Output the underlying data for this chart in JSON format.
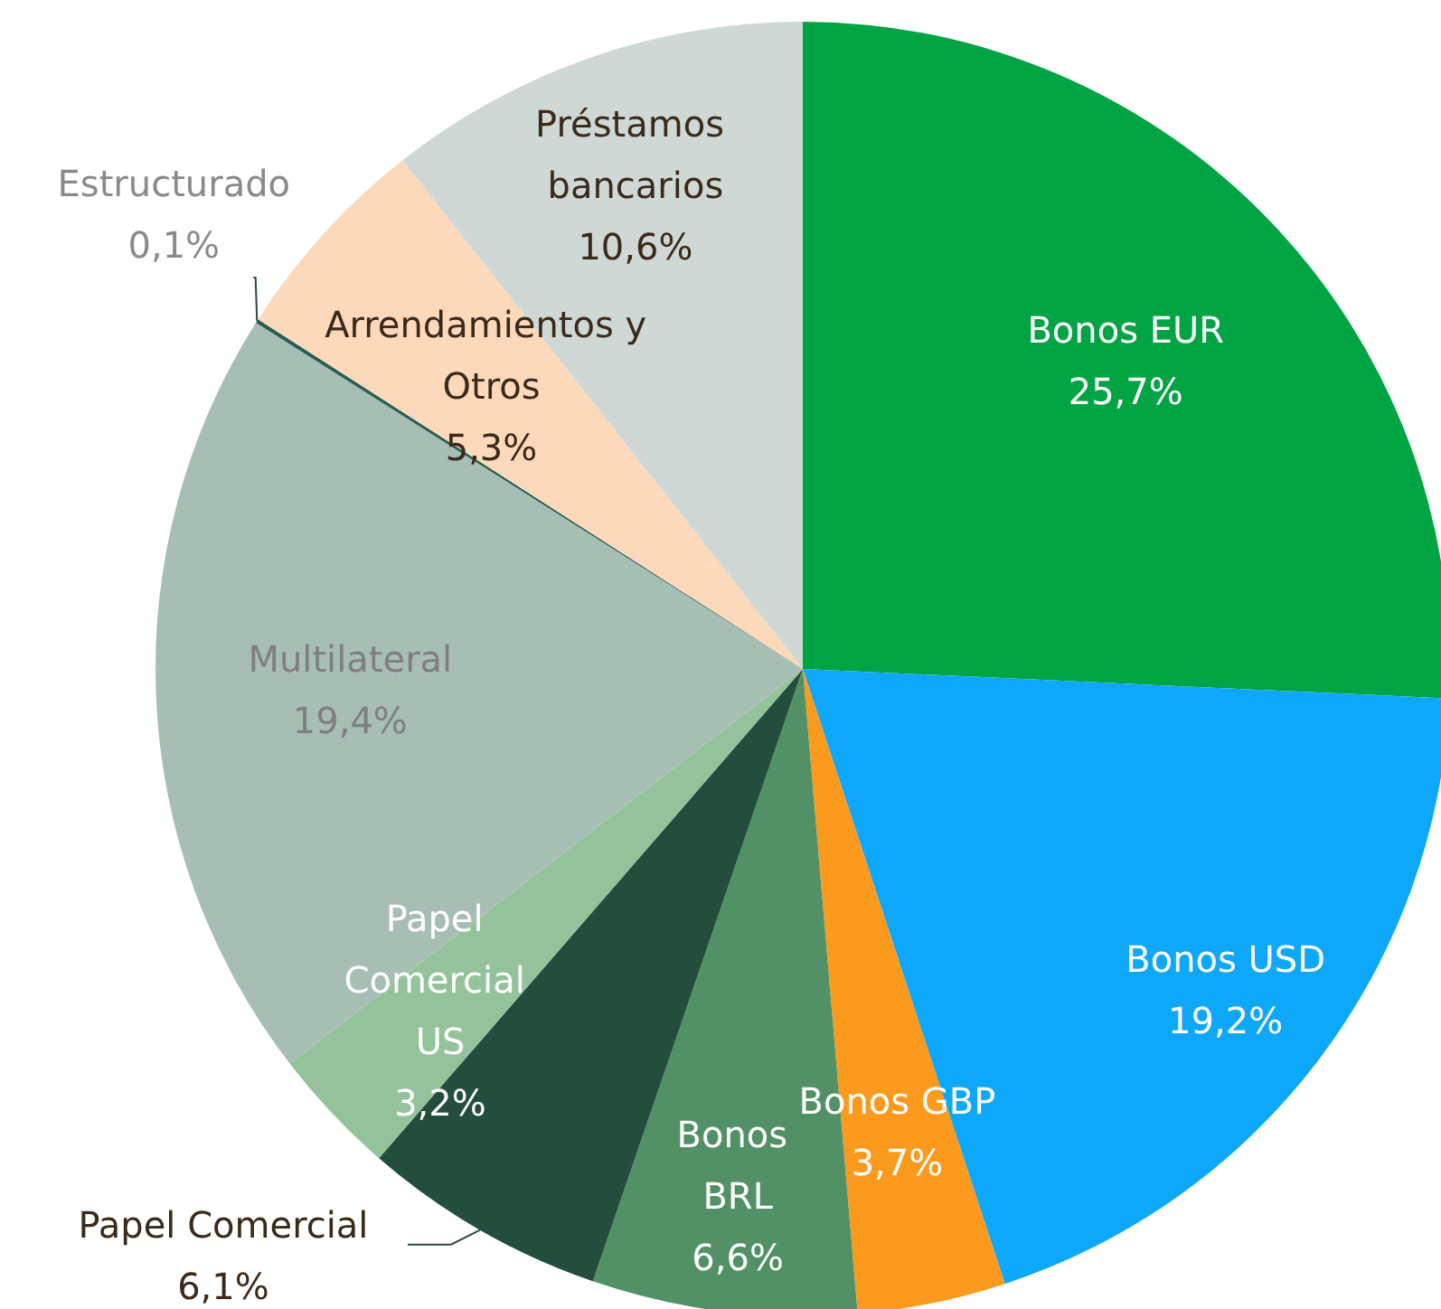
{
  "chart_data": {
    "type": "pie",
    "categories": [
      "Bonos EUR",
      "Bonos USD",
      "Bonos GBP",
      "Bonos BRL",
      "Papel Comercial",
      "Papel Comercial US",
      "Multilateral",
      "Estructurado",
      "Arrendamientos y Otros",
      "Préstamos bancarios"
    ],
    "values": [
      25.7,
      19.2,
      3.7,
      6.6,
      6.1,
      3.2,
      19.4,
      0.1,
      5.3,
      10.6
    ],
    "value_labels": [
      "25,7%",
      "19,2%",
      "3,7%",
      "6,6%",
      "6,1%",
      "3,2%",
      "19,4%",
      "0,1%",
      "5,3%",
      "10,6%"
    ],
    "colors": [
      "#00a443",
      "#0ea8fb",
      "#fb9a1c",
      "#529065",
      "#234e3d",
      "#93c29b",
      "#a7beb4",
      "#2a5e51",
      "#fdd9bb",
      "#d0d8d6"
    ],
    "legend": false
  }
}
